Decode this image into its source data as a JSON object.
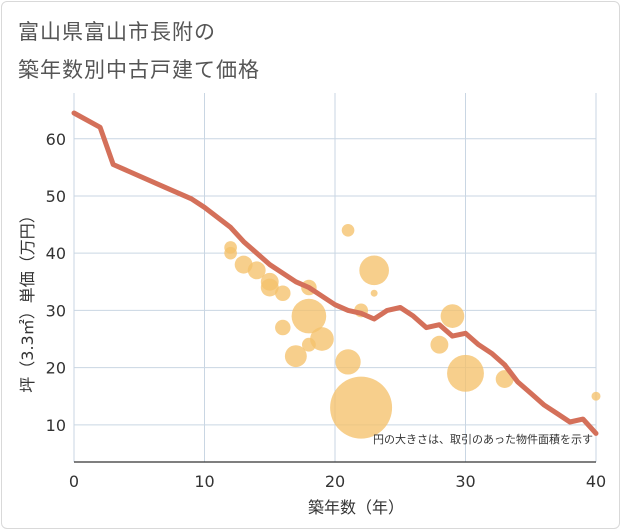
{
  "title_line1": "富山県富山市長附の",
  "title_line2": "築年数別中古戸建て価格",
  "colors": {
    "bubble": "#f5c26b",
    "line": "#d4705a",
    "grid": "#c9d6e3",
    "axis": "#333333"
  },
  "chart_data": {
    "type": "scatter",
    "xlabel": "築年数（年）",
    "ylabel": "坪（3.3㎡）単価（万円）",
    "xlim": [
      0,
      40
    ],
    "ylim": [
      3.5,
      68
    ],
    "xticks": [
      0,
      10,
      20,
      30,
      40
    ],
    "yticks": [
      10,
      20,
      30,
      40,
      50,
      60
    ],
    "note": "円の大きさは、取引のあった物件面積を示す",
    "bubbles": [
      {
        "x": 12,
        "y": 40,
        "s": 0.1
      },
      {
        "x": 12,
        "y": 41,
        "s": 0.1
      },
      {
        "x": 13,
        "y": 38,
        "s": 0.2
      },
      {
        "x": 14,
        "y": 37,
        "s": 0.2
      },
      {
        "x": 15,
        "y": 35,
        "s": 0.2
      },
      {
        "x": 15,
        "y": 34,
        "s": 0.2
      },
      {
        "x": 16,
        "y": 33,
        "s": 0.15
      },
      {
        "x": 16,
        "y": 27,
        "s": 0.15
      },
      {
        "x": 17,
        "y": 22,
        "s": 0.3
      },
      {
        "x": 18,
        "y": 34,
        "s": 0.15
      },
      {
        "x": 18,
        "y": 29,
        "s": 0.75
      },
      {
        "x": 18,
        "y": 24,
        "s": 0.12
      },
      {
        "x": 19,
        "y": 25,
        "s": 0.35
      },
      {
        "x": 21,
        "y": 44,
        "s": 0.1
      },
      {
        "x": 21,
        "y": 21,
        "s": 0.4
      },
      {
        "x": 22,
        "y": 30,
        "s": 0.12
      },
      {
        "x": 22,
        "y": 13,
        "s": 2.4
      },
      {
        "x": 23,
        "y": 37,
        "s": 0.55
      },
      {
        "x": 23,
        "y": 33,
        "s": 0.03
      },
      {
        "x": 28,
        "y": 24,
        "s": 0.2
      },
      {
        "x": 29,
        "y": 29,
        "s": 0.35
      },
      {
        "x": 30,
        "y": 19,
        "s": 0.85
      },
      {
        "x": 33,
        "y": 18,
        "s": 0.2
      },
      {
        "x": 40,
        "y": 15,
        "s": 0.05
      }
    ],
    "series": [
      {
        "x": [
          0,
          2,
          3,
          5,
          7,
          9,
          10,
          12,
          13,
          15,
          17,
          18,
          19,
          20,
          21,
          22,
          23,
          24,
          25,
          26,
          27,
          28,
          29,
          30,
          31,
          32,
          33,
          34,
          35,
          36,
          37,
          38,
          39,
          40
        ],
        "values": [
          64.5,
          62,
          55.5,
          53.5,
          51.5,
          49.5,
          48,
          44.5,
          42,
          38,
          35,
          34,
          32.5,
          31,
          30,
          29.5,
          28.5,
          30,
          30.5,
          29,
          27,
          27.5,
          25.5,
          26,
          24,
          22.5,
          20.5,
          17.5,
          15.5,
          13.5,
          12,
          10.5,
          11,
          8.5
        ]
      }
    ]
  }
}
